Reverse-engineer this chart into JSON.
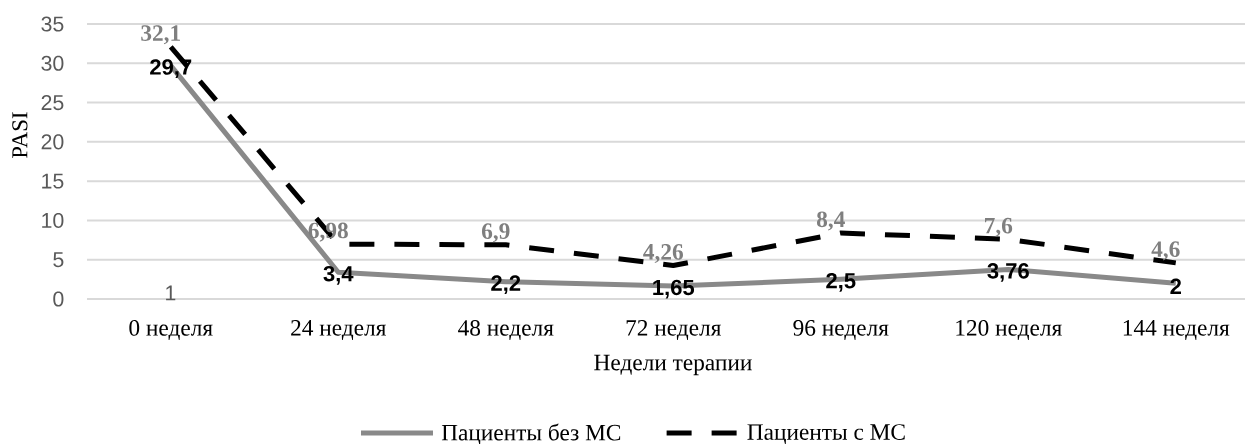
{
  "chart_data": {
    "type": "line",
    "xlabel": "Недели терапии",
    "ylabel": "PASI",
    "categories": [
      "0 неделя",
      "24 неделя",
      "48 неделя",
      "72 неделя",
      "96 неделя",
      "120 неделя",
      "144 неделя"
    ],
    "series": [
      {
        "name": "Пациенты без МС",
        "color": "#898989",
        "line_style": "solid",
        "values": [
          29.7,
          3.4,
          2.2,
          1.65,
          2.5,
          3.76,
          2
        ],
        "value_labels": [
          "29,7",
          "3,4",
          "2,2",
          "1,65",
          "2,5",
          "3,76",
          "2"
        ]
      },
      {
        "name": "Пациенты с МС",
        "color": "#000000",
        "line_style": "dashed",
        "values": [
          32.1,
          6.98,
          6.9,
          4.26,
          8.4,
          7.6,
          4.6
        ],
        "value_labels": [
          "32,1",
          "6,98",
          "6,9",
          "4,26",
          "8,4",
          "7,6",
          "4,6"
        ]
      }
    ],
    "ylim": [
      0,
      35
    ],
    "yticks": [
      0,
      5,
      10,
      15,
      20,
      25,
      30,
      35
    ],
    "grid": "y",
    "legend": "bottom",
    "marker": "none",
    "annotations": [
      "1"
    ]
  }
}
